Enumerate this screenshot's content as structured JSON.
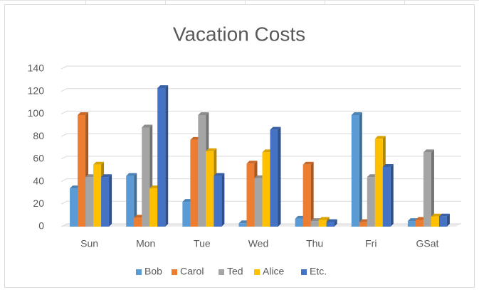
{
  "chart_data": {
    "type": "bar",
    "title": "Vacation Costs",
    "categories": [
      "Sun",
      "Mon",
      "Tue",
      "Wed",
      "Thu",
      "Fri",
      "GSat"
    ],
    "series": [
      {
        "name": "Bob",
        "color": "#5b9bd5",
        "values": [
          34,
          45,
          22,
          3,
          7,
          99,
          5
        ]
      },
      {
        "name": "Carol",
        "color": "#ed7d31",
        "values": [
          99,
          8,
          77,
          56,
          55,
          4,
          6
        ]
      },
      {
        "name": "Ted",
        "color": "#a5a5a5",
        "values": [
          44,
          88,
          99,
          43,
          5,
          44,
          66
        ]
      },
      {
        "name": "Alice",
        "color": "#ffc000",
        "values": [
          55,
          34,
          67,
          66,
          6,
          78,
          9
        ]
      },
      {
        "name": "Etc.",
        "color": "#4472c4",
        "values": [
          44,
          123,
          45,
          86,
          4,
          53,
          9
        ]
      }
    ],
    "ylim": [
      0,
      140
    ],
    "yticks": [
      0,
      20,
      40,
      60,
      80,
      100,
      120,
      140
    ],
    "grid": true,
    "legend": "bottom"
  }
}
